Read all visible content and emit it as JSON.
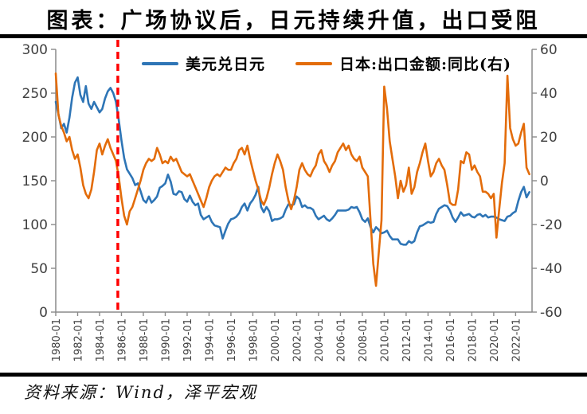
{
  "title": "图表：广场协议后，日元持续升值，出口受阻",
  "source": "资料来源：Wind，泽平宏观",
  "legend": [
    {
      "label": "美元兑日元",
      "color": "#2E75B6"
    },
    {
      "label": "日本:出口金额:同比(右)",
      "color": "#E36C0A"
    }
  ],
  "chart_data": {
    "type": "line",
    "title": "图表：广场协议后，日元持续升值，出口受阻",
    "legend_position": "top",
    "grid": false,
    "x_start": 1980.0,
    "x_step": 0.25,
    "x_axis_max": 2023.5,
    "x_ticks": [
      "1980-01",
      "1982-01",
      "1984-01",
      "1986-01",
      "1988-01",
      "1990-01",
      "1992-01",
      "1994-01",
      "1996-01",
      "1998-01",
      "2000-01",
      "2002-01",
      "2004-01",
      "2006-01",
      "2008-01",
      "2010-01",
      "2012-01",
      "2014-01",
      "2016-01",
      "2018-01",
      "2020-01",
      "2022-01"
    ],
    "left_axis": {
      "min": 0,
      "max": 300,
      "ticks": [
        300,
        250,
        200,
        150,
        100,
        50,
        0
      ]
    },
    "right_axis": {
      "min": -60,
      "max": 60,
      "ticks": [
        60,
        40,
        20,
        0,
        -20,
        -40,
        -60
      ]
    },
    "vline": {
      "x": 1985.67,
      "style": "dashed",
      "color": "#FF0000"
    },
    "axis_color": "#8A8A8A",
    "tick_label_color": "#3F3F3F",
    "series": [
      {
        "name": "美元兑日元",
        "axis": "left",
        "color": "#2E75B6",
        "values": [
          240,
          226,
          210,
          215,
          205,
          222,
          245,
          262,
          268,
          248,
          240,
          258,
          238,
          232,
          240,
          234,
          228,
          232,
          244,
          252,
          256,
          250,
          240,
          220,
          196,
          176,
          163,
          158,
          153,
          145,
          147,
          138,
          128,
          125,
          132,
          125,
          128,
          132,
          142,
          144,
          147,
          157,
          149,
          135,
          134,
          138,
          137,
          129,
          126,
          133,
          126,
          122,
          124,
          111,
          106,
          108,
          110,
          103,
          99,
          98,
          97,
          84,
          93,
          101,
          106,
          107,
          109,
          113,
          120,
          124,
          116,
          124,
          128,
          134,
          143,
          120,
          114,
          120,
          115,
          104,
          106,
          106,
          107,
          109,
          117,
          123,
          122,
          123,
          132,
          129,
          120,
          122,
          119,
          119,
          117,
          110,
          106,
          108,
          110,
          106,
          104,
          107,
          111,
          116,
          116,
          116,
          116,
          117,
          120,
          119,
          120,
          114,
          106,
          103,
          107,
          97,
          91,
          97,
          94,
          90,
          91,
          93,
          87,
          83,
          83,
          83,
          78,
          77,
          77,
          81,
          79,
          81,
          91,
          98,
          99,
          101,
          103,
          102,
          103,
          112,
          118,
          120,
          122,
          121,
          116,
          108,
          103,
          108,
          114,
          110,
          111,
          112,
          109,
          108,
          111,
          112,
          109,
          111,
          108,
          109,
          109,
          108,
          106,
          105,
          104,
          109,
          110,
          113,
          115,
          127,
          137,
          143,
          131,
          137
        ]
      },
      {
        "name": "日本:出口金额:同比(右)",
        "axis": "right",
        "color": "#E36C0A",
        "values": [
          49,
          30,
          25,
          22,
          18,
          20,
          14,
          10,
          12,
          6,
          -2,
          -6,
          -8,
          -4,
          4,
          14,
          17,
          12,
          16,
          19,
          15,
          12,
          9,
          2,
          -8,
          -16,
          -20,
          -14,
          -12,
          -8,
          -4,
          0,
          5,
          8,
          10,
          9,
          10,
          15,
          12,
          8,
          9,
          8,
          11,
          9,
          10,
          7,
          4,
          3,
          2,
          3,
          0,
          -3,
          -6,
          -9,
          -12,
          -8,
          -3,
          0,
          2,
          3,
          2,
          4,
          6,
          5,
          5,
          8,
          10,
          14,
          15,
          12,
          16,
          10,
          5,
          0,
          -4,
          -9,
          -11,
          -8,
          -3,
          3,
          8,
          12,
          9,
          5,
          -3,
          -9,
          -13,
          -9,
          -3,
          5,
          8,
          5,
          3,
          2,
          5,
          7,
          12,
          14,
          9,
          7,
          4,
          7,
          9,
          13,
          15,
          17,
          14,
          16,
          12,
          10,
          9,
          11,
          6,
          4,
          2,
          -18,
          -38,
          -48,
          -33,
          -18,
          43,
          33,
          18,
          10,
          2,
          -8,
          0,
          -5,
          -2,
          6,
          -6,
          -3,
          4,
          8,
          13,
          17,
          9,
          2,
          4,
          8,
          10,
          7,
          5,
          -2,
          -10,
          -11,
          -11,
          -4,
          9,
          8,
          13,
          12,
          5,
          7,
          4,
          2,
          -5,
          -5,
          -6,
          -8,
          -6,
          -26,
          -13,
          -1,
          8,
          48,
          24,
          19,
          16,
          17,
          22,
          26,
          6,
          3
        ]
      }
    ]
  }
}
